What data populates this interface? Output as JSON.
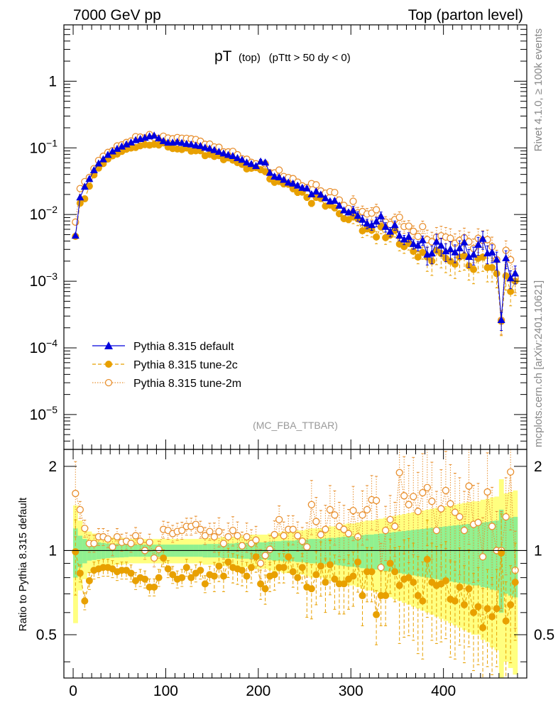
{
  "header": {
    "left": "7000 GeV pp",
    "right": "Top (parton level)"
  },
  "side_labels": {
    "rivet": "Rivet 4.1.0, ≥ 100k events",
    "mcplots": "mcplots.cern.ch [arXiv:2401.10621]"
  },
  "analysis_tag": "(MC_FBA_TTBAR)",
  "colors": {
    "default": "#0000dd",
    "tune2c": "#e8a000",
    "tune2m": "#e89030",
    "band_yellow": "#ffff80",
    "band_green": "#90f090"
  },
  "chart_data": [
    {
      "type": "line",
      "title": "pT",
      "title_sub": "(top)",
      "title_cut": "(pTtt > 50 dy < 0)",
      "xlabel": "",
      "ylabel": "",
      "yscale": "log",
      "xlim": [
        -10,
        490
      ],
      "ylim": [
        3e-06,
        7
      ],
      "y_ticks": [
        {
          "value": 1,
          "label": "1",
          "exp": ""
        },
        {
          "value": 0.1,
          "label": "10",
          "exp": "−1"
        },
        {
          "value": 0.01,
          "label": "10",
          "exp": "−2"
        },
        {
          "value": 0.001,
          "label": "10",
          "exp": "−3"
        },
        {
          "value": 0.0001,
          "label": "10",
          "exp": "−4"
        },
        {
          "value": 1e-05,
          "label": "10",
          "exp": "−5"
        }
      ],
      "legend": [
        {
          "label": "Pythia 8.315 default",
          "series": "default"
        },
        {
          "label": "Pythia 8.315 tune-2c",
          "series": "tune2c"
        },
        {
          "label": "Pythia 8.315 tune-2m",
          "series": "tune2m"
        }
      ],
      "x": [
        2.5,
        7.5,
        12.5,
        17.5,
        22.5,
        27.5,
        32.5,
        37.5,
        42.5,
        47.5,
        52.5,
        57.5,
        62.5,
        67.5,
        72.5,
        77.5,
        82.5,
        87.5,
        92.5,
        97.5,
        102.5,
        107.5,
        112.5,
        117.5,
        122.5,
        127.5,
        132.5,
        137.5,
        142.5,
        147.5,
        152.5,
        157.5,
        162.5,
        167.5,
        172.5,
        177.5,
        182.5,
        187.5,
        192.5,
        197.5,
        202.5,
        207.5,
        212.5,
        217.5,
        222.5,
        227.5,
        232.5,
        237.5,
        242.5,
        247.5,
        252.5,
        257.5,
        262.5,
        267.5,
        272.5,
        277.5,
        282.5,
        287.5,
        292.5,
        297.5,
        302.5,
        307.5,
        312.5,
        317.5,
        322.5,
        327.5,
        332.5,
        337.5,
        342.5,
        347.5,
        352.5,
        357.5,
        362.5,
        367.5,
        372.5,
        377.5,
        382.5,
        387.5,
        392.5,
        397.5,
        402.5,
        407.5,
        412.5,
        417.5,
        422.5,
        427.5,
        432.5,
        437.5,
        442.5,
        447.5,
        452.5,
        457.5,
        462.5,
        467.5,
        472.5,
        477.5
      ],
      "series": [
        {
          "name": "Pythia 8.315 default",
          "key": "default",
          "marker": "triangle",
          "values": [
            0.0048,
            0.018,
            0.026,
            0.034,
            0.046,
            0.058,
            0.067,
            0.078,
            0.088,
            0.096,
            0.104,
            0.112,
            0.12,
            0.13,
            0.135,
            0.141,
            0.148,
            0.152,
            0.138,
            0.126,
            0.119,
            0.119,
            0.122,
            0.118,
            0.114,
            0.112,
            0.108,
            0.106,
            0.1,
            0.097,
            0.092,
            0.087,
            0.082,
            0.078,
            0.075,
            0.07,
            0.066,
            0.06,
            0.057,
            0.053,
            0.062,
            0.06,
            0.042,
            0.037,
            0.036,
            0.033,
            0.03,
            0.029,
            0.027,
            0.025,
            0.0245,
            0.02,
            0.022,
            0.0198,
            0.0175,
            0.0157,
            0.016,
            0.0135,
            0.0115,
            0.0107,
            0.0114,
            0.0095,
            0.0083,
            0.0073,
            0.0069,
            0.0078,
            0.0094,
            0.0065,
            0.0055,
            0.0069,
            0.0048,
            0.0042,
            0.0046,
            0.0036,
            0.0034,
            0.0041,
            0.0025,
            0.0026,
            0.0039,
            0.0034,
            0.0028,
            0.003,
            0.0027,
            0.0031,
            0.0038,
            0.0023,
            0.0025,
            0.0035,
            0.0043,
            0.0026,
            0.0027,
            0.0021,
            0.00026,
            0.0022,
            0.0011,
            0.0013
          ]
        },
        {
          "name": "Pythia 8.315 tune-2c",
          "key": "tune2c",
          "marker": "circle",
          "values": [
            0.0047,
            0.0148,
            0.0172,
            0.0266,
            0.0393,
            0.0497,
            0.058,
            0.0679,
            0.0757,
            0.0805,
            0.0884,
            0.0952,
            0.0991,
            0.1014,
            0.1073,
            0.1117,
            0.1096,
            0.1131,
            0.1104,
            0.1184,
            0.1028,
            0.0977,
            0.0962,
            0.0944,
            0.0995,
            0.0892,
            0.0902,
            0.0905,
            0.0763,
            0.0796,
            0.0743,
            0.0765,
            0.0664,
            0.0708,
            0.0654,
            0.06,
            0.0564,
            0.0483,
            0.0493,
            0.0505,
            0.0471,
            0.0441,
            0.0342,
            0.0305,
            0.0314,
            0.0288,
            0.0285,
            0.0244,
            0.0215,
            0.0217,
            0.0181,
            0.0147,
            0.0181,
            0.0174,
            0.0134,
            0.0139,
            0.0126,
            0.0103,
            0.0087,
            0.0084,
            0.0092,
            0.0086,
            0.0057,
            0.0061,
            0.0058,
            0.0046,
            0.0065,
            0.0045,
            0.0049,
            0.0058,
            0.0036,
            0.0033,
            0.0037,
            0.0028,
            0.0023,
            0.0027,
            0.0023,
            0.002,
            0.0029,
            0.0026,
            0.0022,
            0.002,
            0.0018,
            0.0023,
            0.0024,
            0.0017,
            0.0015,
            0.0022,
            0.0023,
            0.0016,
            0.0016,
            0.0013,
            0.00025,
            0.0012,
            0.0007,
            0.001
          ]
        },
        {
          "name": "Pythia 8.315 tune-2m",
          "key": "tune2m",
          "marker": "open-circle",
          "values": [
            0.0077,
            0.0245,
            0.0311,
            0.036,
            0.0488,
            0.0647,
            0.0749,
            0.0854,
            0.0906,
            0.1069,
            0.1109,
            0.1205,
            0.1268,
            0.1472,
            0.1451,
            0.1415,
            0.1584,
            0.1424,
            0.1393,
            0.1495,
            0.1404,
            0.1369,
            0.1427,
            0.1394,
            0.1389,
            0.1366,
            0.1335,
            0.1257,
            0.1129,
            0.1139,
            0.1031,
            0.1021,
            0.0871,
            0.087,
            0.0885,
            0.0789,
            0.0686,
            0.0675,
            0.0606,
            0.0577,
            0.0558,
            0.0577,
            0.0424,
            0.0421,
            0.0464,
            0.0372,
            0.0358,
            0.0346,
            0.0306,
            0.0269,
            0.0253,
            0.0291,
            0.0279,
            0.0226,
            0.0209,
            0.022,
            0.0214,
            0.0165,
            0.0137,
            0.0123,
            0.0158,
            0.0106,
            0.0111,
            0.0102,
            0.0105,
            0.0118,
            0.0082,
            0.0077,
            0.0071,
            0.0084,
            0.0091,
            0.0066,
            0.0067,
            0.0056,
            0.0047,
            0.0066,
            0.0042,
            0.0039,
            0.0046,
            0.0048,
            0.0046,
            0.0044,
            0.0037,
            0.0041,
            0.0045,
            0.0039,
            0.0031,
            0.0044,
            0.0041,
            0.0042,
            0.0033,
            0.0021,
            0.00026,
            0.0029,
            0.0021,
            0.0011
          ]
        }
      ]
    },
    {
      "type": "line",
      "title": "",
      "xlabel": "",
      "ylabel": "Ratio to Pythia 8.315 default",
      "xlim": [
        -10,
        490
      ],
      "ylim": [
        0.35,
        2.3
      ],
      "x_ticks": [
        0,
        100,
        200,
        300,
        400
      ],
      "y_ticks": [
        0.5,
        1,
        2
      ],
      "reference_line": 1,
      "bands": {
        "yellow_halfwidth": [
          0.45,
          0.28,
          0.21,
          0.17,
          0.15,
          0.14,
          0.13,
          0.12,
          0.115,
          0.11,
          0.11,
          0.105,
          0.1,
          0.1,
          0.1,
          0.1,
          0.1,
          0.1,
          0.1,
          0.1,
          0.1,
          0.1,
          0.1,
          0.1,
          0.1,
          0.1,
          0.1,
          0.1,
          0.11,
          0.11,
          0.11,
          0.11,
          0.12,
          0.12,
          0.12,
          0.13,
          0.13,
          0.13,
          0.14,
          0.14,
          0.14,
          0.14,
          0.15,
          0.16,
          0.16,
          0.17,
          0.17,
          0.17,
          0.18,
          0.18,
          0.19,
          0.2,
          0.2,
          0.2,
          0.21,
          0.22,
          0.22,
          0.23,
          0.24,
          0.25,
          0.25,
          0.26,
          0.27,
          0.28,
          0.28,
          0.29,
          0.3,
          0.31,
          0.32,
          0.33,
          0.34,
          0.35,
          0.36,
          0.37,
          0.38,
          0.39,
          0.4,
          0.41,
          0.42,
          0.43,
          0.44,
          0.45,
          0.46,
          0.47,
          0.48,
          0.49,
          0.5,
          0.5,
          0.52,
          0.53,
          0.55,
          0.56,
          0.8,
          0.6,
          0.62,
          0.64
        ],
        "green_halfwidth": [
          0.2,
          0.13,
          0.1,
          0.08,
          0.075,
          0.07,
          0.065,
          0.06,
          0.058,
          0.056,
          0.055,
          0.053,
          0.05,
          0.05,
          0.05,
          0.05,
          0.05,
          0.05,
          0.05,
          0.05,
          0.05,
          0.05,
          0.05,
          0.05,
          0.05,
          0.05,
          0.05,
          0.05,
          0.055,
          0.055,
          0.055,
          0.055,
          0.06,
          0.06,
          0.06,
          0.065,
          0.065,
          0.065,
          0.07,
          0.07,
          0.07,
          0.07,
          0.075,
          0.08,
          0.08,
          0.085,
          0.085,
          0.085,
          0.09,
          0.09,
          0.095,
          0.1,
          0.1,
          0.1,
          0.105,
          0.11,
          0.11,
          0.115,
          0.12,
          0.125,
          0.125,
          0.13,
          0.135,
          0.14,
          0.14,
          0.145,
          0.15,
          0.155,
          0.16,
          0.165,
          0.17,
          0.175,
          0.18,
          0.185,
          0.19,
          0.195,
          0.2,
          0.205,
          0.21,
          0.215,
          0.22,
          0.225,
          0.23,
          0.235,
          0.24,
          0.245,
          0.25,
          0.25,
          0.26,
          0.265,
          0.275,
          0.28,
          0.4,
          0.3,
          0.31,
          0.32
        ]
      },
      "series": [
        {
          "name": "Pythia 8.315 tune-2c",
          "key": "tune2c",
          "marker": "circle",
          "values": [
            0.99,
            0.83,
            0.66,
            0.78,
            0.85,
            0.86,
            0.87,
            0.87,
            0.86,
            0.84,
            0.85,
            0.85,
            0.83,
            0.78,
            0.8,
            0.79,
            0.74,
            0.74,
            0.8,
            0.94,
            0.86,
            0.82,
            0.79,
            0.8,
            0.87,
            0.8,
            0.83,
            0.85,
            0.76,
            0.82,
            0.81,
            0.88,
            0.81,
            0.91,
            0.87,
            0.86,
            0.85,
            0.81,
            0.87,
            0.95,
            0.76,
            0.73,
            0.81,
            0.82,
            0.87,
            0.87,
            0.95,
            0.84,
            0.8,
            0.87,
            0.74,
            0.73,
            0.82,
            0.88,
            0.77,
            0.89,
            0.79,
            0.76,
            0.76,
            0.79,
            0.81,
            0.91,
            0.69,
            0.84,
            0.84,
            0.59,
            0.69,
            0.69,
            0.9,
            0.84,
            0.75,
            0.79,
            0.8,
            0.77,
            0.69,
            0.66,
            0.93,
            0.77,
            0.75,
            0.76,
            0.78,
            0.67,
            0.66,
            0.74,
            0.64,
            0.73,
            0.6,
            0.63,
            0.53,
            0.62,
            0.58,
            0.62,
            0.98,
            0.56,
            0.64,
            0.77
          ]
        },
        {
          "name": "Pythia 8.315 tune-2m",
          "key": "tune2m",
          "marker": "open-circle",
          "values": [
            1.6,
            1.4,
            1.2,
            1.06,
            1.06,
            1.12,
            1.12,
            1.1,
            1.03,
            1.12,
            1.07,
            1.08,
            1.06,
            1.13,
            1.08,
            1.0,
            1.07,
            0.94,
            1.01,
            1.19,
            1.18,
            1.15,
            1.17,
            1.18,
            1.22,
            1.22,
            1.24,
            1.19,
            1.13,
            1.17,
            1.12,
            1.17,
            1.06,
            1.12,
            1.18,
            1.13,
            1.04,
            1.12,
            1.06,
            1.09,
            0.9,
            0.96,
            1.01,
            1.14,
            1.29,
            1.13,
            1.19,
            1.19,
            1.13,
            1.08,
            1.03,
            1.46,
            1.27,
            1.14,
            1.19,
            1.4,
            1.34,
            1.22,
            1.19,
            1.15,
            1.39,
            1.12,
            1.34,
            1.4,
            1.52,
            1.51,
            0.87,
            1.18,
            1.29,
            1.22,
            1.9,
            1.57,
            1.46,
            1.56,
            1.38,
            1.61,
            1.68,
            1.5,
            1.18,
            1.41,
            1.64,
            1.47,
            1.37,
            1.32,
            1.18,
            1.7,
            1.24,
            1.26,
            0.95,
            1.62,
            1.22,
            1.0,
            1.0,
            1.32,
            1.91,
            0.85
          ]
        }
      ]
    }
  ]
}
